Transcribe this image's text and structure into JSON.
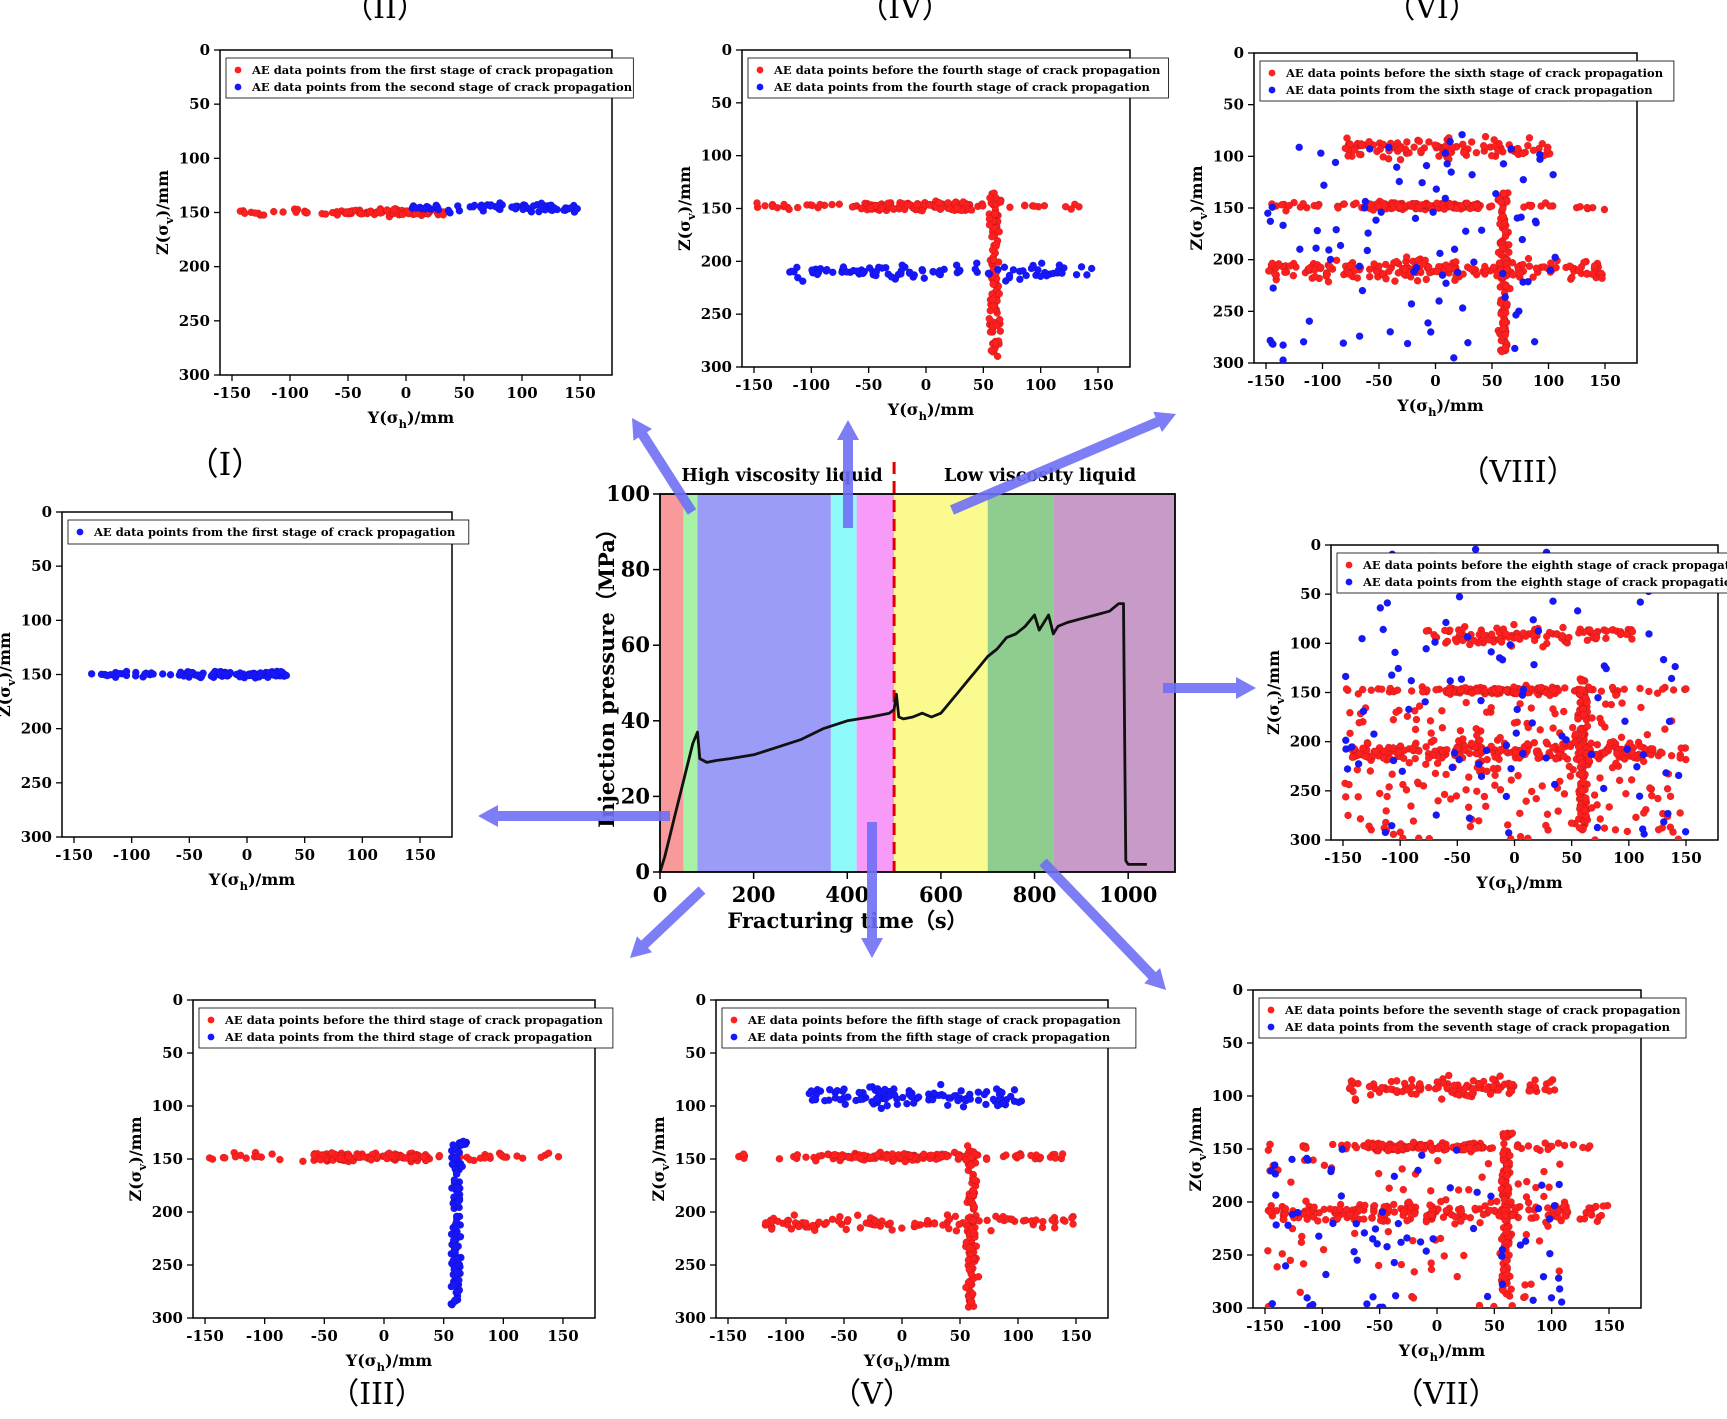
{
  "figure": {
    "panel_colors": {
      "red": "#ff1f1f",
      "blue": "#1717ff"
    },
    "arrow_color": "#6f6ff5"
  },
  "chart_data": [
    {
      "id": "main",
      "type": "line",
      "title": "",
      "xlabel": "Fracturing time（s）",
      "ylabel": "Injection pressure（MPa）",
      "xlim": [
        0,
        1100
      ],
      "ylim": [
        0,
        100
      ],
      "xticks": [
        0,
        200,
        400,
        600,
        800,
        1000
      ],
      "yticks": [
        0,
        20,
        40,
        60,
        80,
        100
      ],
      "annotations": {
        "high": "High viscosity liquid",
        "low": "Low viscosity liquid"
      },
      "fluid_switch_time": 500,
      "stages": [
        {
          "stage": "I",
          "start": 0,
          "end": 50,
          "color": "#f89a9a"
        },
        {
          "stage": "II",
          "start": 50,
          "end": 80,
          "color": "#a7f2a7"
        },
        {
          "stage": "III",
          "start": 80,
          "end": 365,
          "color": "#9a9cf8"
        },
        {
          "stage": "IV",
          "start": 365,
          "end": 420,
          "color": "#8ffafa"
        },
        {
          "stage": "V",
          "start": 420,
          "end": 500,
          "color": "#f89af8"
        },
        {
          "stage": "VI",
          "start": 500,
          "end": 700,
          "color": "#fafa8f"
        },
        {
          "stage": "VII",
          "start": 700,
          "end": 840,
          "color": "#8fcc8f"
        },
        {
          "stage": "VIII",
          "start": 840,
          "end": 1100,
          "color": "#c89ac8"
        }
      ],
      "x": [
        0,
        10,
        20,
        30,
        40,
        50,
        60,
        70,
        80,
        85,
        100,
        120,
        150,
        200,
        250,
        300,
        350,
        400,
        450,
        490,
        500,
        505,
        510,
        520,
        540,
        560,
        580,
        600,
        620,
        640,
        660,
        680,
        700,
        720,
        740,
        760,
        780,
        800,
        810,
        820,
        830,
        840,
        850,
        870,
        900,
        930,
        960,
        980,
        990,
        993,
        995,
        1000,
        1040
      ],
      "y": [
        0,
        4,
        9,
        14,
        19,
        24,
        29,
        34,
        37,
        30,
        29,
        29.5,
        30,
        31,
        33,
        35,
        38,
        40,
        41,
        42,
        43,
        47,
        41,
        40.5,
        41,
        42,
        41,
        42,
        45,
        48,
        51,
        54,
        57,
        59,
        62,
        63,
        65,
        68,
        64,
        66,
        68,
        63,
        65,
        66,
        67,
        68,
        69,
        71,
        71,
        28,
        3,
        2,
        2
      ]
    },
    {
      "id": "I",
      "label": "（I）",
      "type": "scatter",
      "xlabel": "Y(σh)/mm",
      "ylabel": "Z(σv)/mm",
      "xlim": [
        -150,
        150
      ],
      "ylim": [
        0,
        300
      ],
      "xticks": [
        -150,
        -100,
        -50,
        0,
        50,
        100,
        150
      ],
      "yticks": [
        0,
        50,
        100,
        150,
        200,
        250,
        300
      ],
      "legend": [
        {
          "color": "blue",
          "text": "AE data points from the first stage of crack propagation"
        }
      ],
      "layers": [
        {
          "color": "blue",
          "clusters": [
            {
              "type": "band",
              "x": [
                -145,
                35
              ],
              "y": 150,
              "spread": 3,
              "n": 110,
              "dense": [
                -60,
                35
              ]
            }
          ]
        }
      ]
    },
    {
      "id": "II",
      "label": "（II）",
      "type": "scatter",
      "xlabel": "Y(σh)/mm",
      "ylabel": "Z(σv)/mm",
      "xlim": [
        -150,
        150
      ],
      "ylim": [
        0,
        300
      ],
      "xticks": [
        -150,
        -100,
        -50,
        0,
        50,
        100,
        150
      ],
      "yticks": [
        0,
        50,
        100,
        150,
        200,
        250,
        300
      ],
      "legend": [
        {
          "color": "red",
          "text": "AE data points from the first stage of crack propagation"
        },
        {
          "color": "blue",
          "text": "AE data points from the second stage of crack propagation"
        }
      ],
      "layers": [
        {
          "color": "red",
          "clusters": [
            {
              "type": "band",
              "x": [
                -145,
                35
              ],
              "y": 150,
              "spread": 3,
              "n": 110,
              "dense": [
                -60,
                35
              ]
            }
          ]
        },
        {
          "color": "blue",
          "clusters": [
            {
              "type": "band",
              "x": [
                0,
                150
              ],
              "y": 146,
              "spread": 4,
              "n": 70
            }
          ]
        }
      ]
    },
    {
      "id": "III",
      "label": "（III）",
      "type": "scatter",
      "xlabel": "Y(σh)/mm",
      "ylabel": "Z(σv)/mm",
      "xlim": [
        -150,
        150
      ],
      "ylim": [
        0,
        300
      ],
      "xticks": [
        -150,
        -100,
        -50,
        0,
        50,
        100,
        150
      ],
      "yticks": [
        0,
        50,
        100,
        150,
        200,
        250,
        300
      ],
      "legend": [
        {
          "color": "red",
          "text": "AE data points before the third stage of crack propagation"
        },
        {
          "color": "blue",
          "text": "AE data points from the third stage of crack propagation"
        }
      ],
      "layers": [
        {
          "color": "red",
          "clusters": [
            {
              "type": "band",
              "x": [
                -148,
                150
              ],
              "y": 148,
              "spread": 4,
              "n": 170,
              "dense": [
                -60,
                40
              ]
            }
          ]
        },
        {
          "color": "blue",
          "clusters": [
            {
              "type": "column",
              "x": 60,
              "y": [
                135,
                290
              ],
              "spread": 5,
              "n": 120
            },
            {
              "type": "blob",
              "x": 65,
              "y": 135,
              "sx": 5,
              "sy": 3,
              "n": 15
            }
          ]
        }
      ]
    },
    {
      "id": "IV",
      "label": "（IV）",
      "type": "scatter",
      "xlabel": "Y(σh)/mm",
      "ylabel": "Z(σv)/mm",
      "xlim": [
        -150,
        150
      ],
      "ylim": [
        0,
        300
      ],
      "xticks": [
        -150,
        -100,
        -50,
        0,
        50,
        100,
        150
      ],
      "yticks": [
        0,
        50,
        100,
        150,
        200,
        250,
        300
      ],
      "legend": [
        {
          "color": "red",
          "text": "AE data points before the fourth stage of crack propagation"
        },
        {
          "color": "blue",
          "text": "AE data points from the fourth stage of crack propagation"
        }
      ],
      "layers": [
        {
          "color": "red",
          "clusters": [
            {
              "type": "band",
              "x": [
                -148,
                150
              ],
              "y": 148,
              "spread": 4,
              "n": 170,
              "dense": [
                -60,
                40
              ]
            },
            {
              "type": "column",
              "x": 60,
              "y": [
                135,
                290
              ],
              "spread": 5,
              "n": 120
            }
          ]
        },
        {
          "color": "blue",
          "clusters": [
            {
              "type": "band",
              "x": [
                -120,
                150
              ],
              "y": 210,
              "spread": 7,
              "n": 100
            }
          ]
        }
      ]
    },
    {
      "id": "V",
      "label": "（V）",
      "type": "scatter",
      "xlabel": "Y(σh)/mm",
      "ylabel": "Z(σv)/mm",
      "xlim": [
        -150,
        150
      ],
      "ylim": [
        0,
        300
      ],
      "xticks": [
        -150,
        -100,
        -50,
        0,
        50,
        100,
        150
      ],
      "yticks": [
        0,
        50,
        100,
        150,
        200,
        250,
        300
      ],
      "legend": [
        {
          "color": "red",
          "text": "AE data points before the fifth stage of crack propagation"
        },
        {
          "color": "blue",
          "text": "AE data points from the fifth stage of crack propagation"
        }
      ],
      "layers": [
        {
          "color": "red",
          "clusters": [
            {
              "type": "band",
              "x": [
                -148,
                150
              ],
              "y": 148,
              "spread": 4,
              "n": 170,
              "dense": [
                -60,
                40
              ]
            },
            {
              "type": "column",
              "x": 60,
              "y": [
                135,
                290
              ],
              "spread": 5,
              "n": 120
            },
            {
              "type": "band",
              "x": [
                -120,
                150
              ],
              "y": 210,
              "spread": 7,
              "n": 100
            }
          ]
        },
        {
          "color": "blue",
          "clusters": [
            {
              "type": "band",
              "x": [
                -80,
                105
              ],
              "y": 92,
              "spread": 10,
              "n": 110
            }
          ]
        }
      ]
    },
    {
      "id": "VI",
      "label": "（VI）",
      "type": "scatter",
      "xlabel": "Y(σh)/mm",
      "ylabel": "Z(σv)/mm",
      "xlim": [
        -150,
        150
      ],
      "ylim": [
        0,
        300
      ],
      "xticks": [
        -150,
        -100,
        -50,
        0,
        50,
        100,
        150
      ],
      "yticks": [
        0,
        50,
        100,
        150,
        200,
        250,
        300
      ],
      "legend": [
        {
          "color": "red",
          "text": "AE data points before the sixth stage of crack propagation"
        },
        {
          "color": "blue",
          "text": "AE data points from the sixth stage of crack propagation"
        }
      ],
      "layers": [
        {
          "color": "red",
          "clusters": [
            {
              "type": "band",
              "x": [
                -148,
                150
              ],
              "y": 148,
              "spread": 4,
              "n": 170,
              "dense": [
                -60,
                40
              ]
            },
            {
              "type": "column",
              "x": 60,
              "y": [
                135,
                290
              ],
              "spread": 5,
              "n": 120
            },
            {
              "type": "band",
              "x": [
                -148,
                150
              ],
              "y": 210,
              "spread": 10,
              "n": 200
            },
            {
              "type": "band",
              "x": [
                -80,
                105
              ],
              "y": 92,
              "spread": 10,
              "n": 110
            }
          ]
        },
        {
          "color": "blue",
          "clusters": [
            {
              "type": "scatter",
              "x": [
                -150,
                110
              ],
              "y": [
                75,
                300
              ],
              "n": 90
            }
          ]
        }
      ]
    },
    {
      "id": "VII",
      "label": "（VII）",
      "type": "scatter",
      "xlabel": "Y(σh)/mm",
      "ylabel": "Z(σv)/mm",
      "xlim": [
        -150,
        150
      ],
      "ylim": [
        0,
        300
      ],
      "xticks": [
        -150,
        -100,
        -50,
        0,
        50,
        100,
        150
      ],
      "yticks": [
        0,
        50,
        100,
        150,
        200,
        250,
        300
      ],
      "legend": [
        {
          "color": "red",
          "text": "AE data points before the seventh stage of crack propagation"
        },
        {
          "color": "blue",
          "text": "AE data points from the seventh stage of crack propagation"
        }
      ],
      "layers": [
        {
          "color": "red",
          "clusters": [
            {
              "type": "band",
              "x": [
                -148,
                150
              ],
              "y": 148,
              "spread": 4,
              "n": 170,
              "dense": [
                -60,
                40
              ]
            },
            {
              "type": "column",
              "x": 60,
              "y": [
                135,
                290
              ],
              "spread": 5,
              "n": 120
            },
            {
              "type": "band",
              "x": [
                -148,
                150
              ],
              "y": 210,
              "spread": 10,
              "n": 200
            },
            {
              "type": "band",
              "x": [
                -80,
                105
              ],
              "y": 92,
              "spread": 10,
              "n": 110
            },
            {
              "type": "scatter",
              "x": [
                -150,
                110
              ],
              "y": [
                160,
                300
              ],
              "n": 80
            }
          ]
        },
        {
          "color": "blue",
          "clusters": [
            {
              "type": "scatter",
              "x": [
                -145,
                110
              ],
              "y": [
                150,
                300
              ],
              "n": 70
            }
          ]
        }
      ]
    },
    {
      "id": "VIII",
      "label": "（VIII）",
      "type": "scatter",
      "xlabel": "Y(σh)/mm",
      "ylabel": "Z(σv)/mm",
      "xlim": [
        -150,
        150
      ],
      "ylim": [
        0,
        300
      ],
      "xticks": [
        -150,
        -100,
        -50,
        0,
        50,
        100,
        150
      ],
      "yticks": [
        0,
        50,
        100,
        150,
        200,
        250,
        300
      ],
      "legend": [
        {
          "color": "red",
          "text": "AE data points before the eighth stage of crack propagation"
        },
        {
          "color": "blue",
          "text": "AE data points from the eighth stage of crack propagation"
        }
      ],
      "layers": [
        {
          "color": "red",
          "clusters": [
            {
              "type": "band",
              "x": [
                -148,
                150
              ],
              "y": 148,
              "spread": 4,
              "n": 170,
              "dense": [
                -60,
                40
              ]
            },
            {
              "type": "column",
              "x": 60,
              "y": [
                135,
                290
              ],
              "spread": 5,
              "n": 130
            },
            {
              "type": "band",
              "x": [
                -148,
                150
              ],
              "y": 210,
              "spread": 10,
              "n": 200
            },
            {
              "type": "band",
              "x": [
                -80,
                105
              ],
              "y": 92,
              "spread": 10,
              "n": 110
            },
            {
              "type": "scatter",
              "x": [
                -150,
                145
              ],
              "y": [
                160,
                300
              ],
              "n": 220
            }
          ]
        },
        {
          "color": "blue",
          "clusters": [
            {
              "type": "scatter",
              "x": [
                -150,
                150
              ],
              "y": [
                0,
                300
              ],
              "n": 100
            }
          ]
        }
      ]
    }
  ]
}
